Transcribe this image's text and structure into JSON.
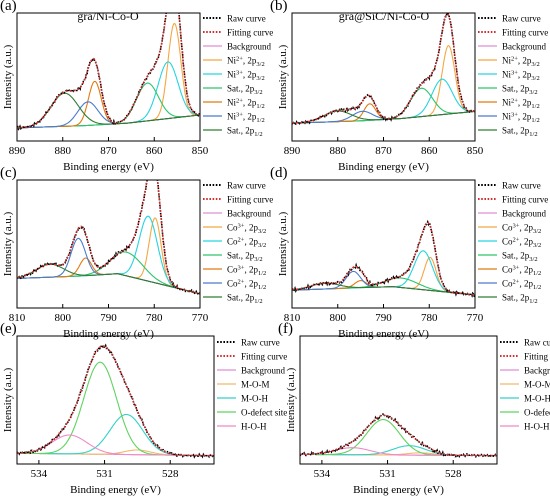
{
  "figure": {
    "xlabel": "Binding energy (eV)",
    "ylabel": "Intensity (a.u.)"
  },
  "colors": {
    "raw": "#000000",
    "fit": "#d32f2f",
    "background": "#e08fd0",
    "ni2_3": "#f4a742",
    "ni3_3": "#27d3e0",
    "sat_3": "#2ec46b",
    "ni2_1": "#e07a10",
    "ni3_1": "#4a7bd0",
    "sat_1": "#2e7d32",
    "o_mom": "#f1b96b",
    "o_moh": "#34d1c8",
    "o_def": "#5fd35f",
    "o_hoh": "#f08ac8"
  },
  "panels": [
    {
      "label": "(a)",
      "title": "gra/Ni-Co-O",
      "xlim": [
        890,
        850
      ],
      "ticks": [
        890,
        880,
        870,
        860,
        850
      ],
      "legend": [
        {
          "text": "Raw curve",
          "sub": "",
          "sup": "",
          "color": "raw",
          "style": "dot"
        },
        {
          "text": "Fitting curve",
          "sub": "",
          "sup": "",
          "color": "fit",
          "style": "dot"
        },
        {
          "text": "Background",
          "sub": "",
          "sup": "",
          "color": "background",
          "style": "line"
        },
        {
          "text": "Ni, 2p",
          "sup": "2+",
          "sub": "3/2",
          "color": "ni2_3",
          "style": "line"
        },
        {
          "text": "Ni, 2p",
          "sup": "3+",
          "sub": "3/2",
          "color": "ni3_3",
          "style": "line"
        },
        {
          "text": "Sat., 2p",
          "sup": "",
          "sub": "3/2",
          "color": "sat_3",
          "style": "line"
        },
        {
          "text": "Ni, 2p",
          "sup": "2+",
          "sub": "1/2",
          "color": "ni2_1",
          "style": "line"
        },
        {
          "text": "Ni, 2p",
          "sup": "3+",
          "sub": "1/2",
          "color": "ni3_1",
          "style": "line"
        },
        {
          "text": "Sat., 2p",
          "sup": "",
          "sub": "1/2",
          "color": "sat_1",
          "style": "line"
        }
      ]
    },
    {
      "label": "(b)",
      "title": "gra@SiC/Ni-Co-O",
      "xlim": [
        890,
        850
      ],
      "ticks": [
        890,
        880,
        870,
        860,
        850
      ],
      "legend": [
        {
          "text": "Raw curve",
          "sub": "",
          "sup": "",
          "color": "raw",
          "style": "dot"
        },
        {
          "text": "Fitting curve",
          "sub": "",
          "sup": "",
          "color": "fit",
          "style": "dot"
        },
        {
          "text": "Background",
          "sub": "",
          "sup": "",
          "color": "background",
          "style": "line"
        },
        {
          "text": "Ni, 2p",
          "sup": "2+",
          "sub": "3/2",
          "color": "ni2_3",
          "style": "line"
        },
        {
          "text": "Ni, 2p",
          "sup": "3+",
          "sub": "3/2",
          "color": "ni3_3",
          "style": "line"
        },
        {
          "text": "Sat., 2p",
          "sup": "",
          "sub": "3/2",
          "color": "sat_3",
          "style": "line"
        },
        {
          "text": "Ni, 2p",
          "sup": "2+",
          "sub": "1/2",
          "color": "ni2_1",
          "style": "line"
        },
        {
          "text": "Ni, 2p",
          "sup": "3+",
          "sub": "1/2",
          "color": "ni3_1",
          "style": "line"
        },
        {
          "text": "Sat., 2p",
          "sup": "",
          "sub": "1/2",
          "color": "sat_1",
          "style": "line"
        }
      ]
    },
    {
      "label": "(c)",
      "title": "",
      "xlim": [
        810,
        770
      ],
      "ticks": [
        810,
        800,
        790,
        780,
        770
      ],
      "legend": [
        {
          "text": "Raw curve",
          "sub": "",
          "sup": "",
          "color": "raw",
          "style": "dot"
        },
        {
          "text": "Fitting curve",
          "sub": "",
          "sup": "",
          "color": "fit",
          "style": "dot"
        },
        {
          "text": "Background",
          "sub": "",
          "sup": "",
          "color": "background",
          "style": "line"
        },
        {
          "text": "Co, 2p",
          "sup": "3+",
          "sub": "3/2",
          "color": "ni2_3",
          "style": "line"
        },
        {
          "text": "Co, 2p",
          "sup": "2+",
          "sub": "3/2",
          "color": "ni3_3",
          "style": "line"
        },
        {
          "text": "Sat., 2p",
          "sup": "",
          "sub": "3/2",
          "color": "sat_3",
          "style": "line"
        },
        {
          "text": "Co, 2p",
          "sup": "3+",
          "sub": "1/2",
          "color": "ni2_1",
          "style": "line"
        },
        {
          "text": "Co, 2p",
          "sup": "2+",
          "sub": "1/2",
          "color": "ni3_1",
          "style": "line"
        },
        {
          "text": "Sat., 2p",
          "sup": "",
          "sub": "1/2",
          "color": "sat_1",
          "style": "line"
        }
      ]
    },
    {
      "label": "(d)",
      "title": "",
      "xlim": [
        810,
        770
      ],
      "ticks": [
        810,
        800,
        790,
        780,
        770
      ],
      "legend": [
        {
          "text": "Raw curve",
          "sub": "",
          "sup": "",
          "color": "raw",
          "style": "dot"
        },
        {
          "text": "Fitting curve",
          "sub": "",
          "sup": "",
          "color": "fit",
          "style": "dot"
        },
        {
          "text": "Background",
          "sub": "",
          "sup": "",
          "color": "background",
          "style": "line"
        },
        {
          "text": "Co, 2p",
          "sup": "3+",
          "sub": "3/2",
          "color": "ni2_3",
          "style": "line"
        },
        {
          "text": "Co, 2p",
          "sup": "2+",
          "sub": "3/2",
          "color": "ni3_3",
          "style": "line"
        },
        {
          "text": "Sat., 2p",
          "sup": "",
          "sub": "3/2",
          "color": "sat_3",
          "style": "line"
        },
        {
          "text": "Co, 2p",
          "sup": "3+",
          "sub": "1/2",
          "color": "ni2_1",
          "style": "line"
        },
        {
          "text": "Co, 2p",
          "sup": "2+",
          "sub": "1/2",
          "color": "ni3_1",
          "style": "line"
        },
        {
          "text": "Sat., 2p",
          "sup": "",
          "sub": "1/2",
          "color": "sat_1",
          "style": "line"
        }
      ]
    },
    {
      "label": "(e)",
      "title": "",
      "xlim": [
        535,
        526
      ],
      "ticks": [
        534,
        531,
        528
      ],
      "legend": [
        {
          "text": "Raw curve",
          "sub": "",
          "sup": "",
          "color": "raw",
          "style": "dot"
        },
        {
          "text": "Fitting curve",
          "sub": "",
          "sup": "",
          "color": "fit",
          "style": "dot"
        },
        {
          "text": "Background",
          "sub": "",
          "sup": "",
          "color": "background",
          "style": "line"
        },
        {
          "text": "M-O-M",
          "sub": "",
          "sup": "",
          "color": "o_mom",
          "style": "line"
        },
        {
          "text": "M-O-H",
          "sub": "",
          "sup": "",
          "color": "o_moh",
          "style": "line"
        },
        {
          "text": "O-defect site",
          "sub": "",
          "sup": "",
          "color": "o_def",
          "style": "line"
        },
        {
          "text": "H-O-H",
          "sub": "",
          "sup": "",
          "color": "o_hoh",
          "style": "line"
        }
      ]
    },
    {
      "label": "(f)",
      "title": "",
      "xlim": [
        535,
        526
      ],
      "ticks": [
        534,
        531,
        528
      ],
      "legend": [
        {
          "text": "Raw curve",
          "sub": "",
          "sup": "",
          "color": "raw",
          "style": "dot"
        },
        {
          "text": "Fitting curve",
          "sub": "",
          "sup": "",
          "color": "fit",
          "style": "dot"
        },
        {
          "text": "Background",
          "sub": "",
          "sup": "",
          "color": "background",
          "style": "line"
        },
        {
          "text": "M-O-M",
          "sub": "",
          "sup": "",
          "color": "o_mom",
          "style": "line"
        },
        {
          "text": "M-O-H",
          "sub": "",
          "sup": "",
          "color": "o_moh",
          "style": "line"
        },
        {
          "text": "O-defect site",
          "sub": "",
          "sup": "",
          "color": "o_def",
          "style": "line"
        },
        {
          "text": "H-O-H",
          "sub": "",
          "sup": "",
          "color": "o_hoh",
          "style": "line"
        }
      ]
    }
  ],
  "chart_data": [
    {
      "panel": "(a)",
      "type": "line",
      "xlabel": "Binding energy (eV)",
      "ylabel": "Intensity (a.u.)",
      "xlim": [
        890,
        850
      ],
      "ylim": [
        0,
        1
      ],
      "background": [
        [
          890,
          0.06
        ],
        [
          875,
          0.08
        ],
        [
          866,
          0.1
        ],
        [
          850,
          0.17
        ]
      ],
      "components": [
        {
          "color": "ni2_3",
          "peaks": [
            [
              855.6,
              0.8,
              1.4
            ]
          ]
        },
        {
          "color": "ni3_3",
          "peaks": [
            [
              857.0,
              0.48,
              2.2
            ]
          ]
        },
        {
          "color": "sat_3",
          "peaks": [
            [
              861.5,
              0.32,
              2.4
            ]
          ]
        },
        {
          "color": "ni2_1",
          "peaks": [
            [
              873.0,
              0.37,
              1.4
            ]
          ]
        },
        {
          "color": "ni3_1",
          "peaks": [
            [
              874.5,
              0.2,
              2.2
            ]
          ]
        },
        {
          "color": "sat_1",
          "peaks": [
            [
              879.6,
              0.28,
              3.0
            ]
          ]
        }
      ]
    },
    {
      "panel": "(b)",
      "type": "line",
      "xlabel": "Binding energy (eV)",
      "ylabel": "Intensity (a.u.)",
      "xlim": [
        890,
        850
      ],
      "ylim": [
        0,
        1
      ],
      "background": [
        [
          890,
          0.1
        ],
        [
          875,
          0.12
        ],
        [
          866,
          0.14
        ],
        [
          850,
          0.2
        ]
      ],
      "components": [
        {
          "color": "ni2_3",
          "peaks": [
            [
              855.8,
              0.58,
              1.4
            ]
          ]
        },
        {
          "color": "ni3_3",
          "peaks": [
            [
              857.2,
              0.3,
              2.2
            ]
          ]
        },
        {
          "color": "sat_3",
          "peaks": [
            [
              861.7,
              0.24,
              2.4
            ]
          ]
        },
        {
          "color": "ni2_1",
          "peaks": [
            [
              873.0,
              0.14,
              1.3
            ]
          ]
        },
        {
          "color": "ni3_1",
          "peaks": [
            [
              874.6,
              0.08,
              2.2
            ]
          ]
        },
        {
          "color": "sat_1",
          "peaks": [
            [
              880.0,
              0.09,
              3.0
            ]
          ]
        }
      ]
    },
    {
      "panel": "(c)",
      "type": "line",
      "xlabel": "Binding energy (eV)",
      "ylabel": "Intensity (a.u.)",
      "xlim": [
        810,
        770
      ],
      "ylim": [
        0,
        1
      ],
      "background": [
        [
          810,
          0.2
        ],
        [
          796,
          0.22
        ],
        [
          788,
          0.24
        ],
        [
          770,
          0.07
        ]
      ],
      "components": [
        {
          "color": "ni2_3",
          "peaks": [
            [
              779.8,
              0.55,
              1.3
            ]
          ]
        },
        {
          "color": "ni3_3",
          "peaks": [
            [
              781.3,
              0.55,
              2.0
            ]
          ]
        },
        {
          "color": "sat_3",
          "peaks": [
            [
              786.0,
              0.2,
              3.5
            ]
          ]
        },
        {
          "color": "ni2_1",
          "peaks": [
            [
              795.0,
              0.15,
              1.3
            ]
          ]
        },
        {
          "color": "ni3_1",
          "peaks": [
            [
              796.6,
              0.32,
              1.6
            ]
          ]
        },
        {
          "color": "sat_1",
          "peaks": [
            [
              802.8,
              0.11,
              3.0
            ]
          ]
        }
      ]
    },
    {
      "panel": "(d)",
      "type": "line",
      "xlabel": "Binding energy (eV)",
      "ylabel": "Intensity (a.u.)",
      "xlim": [
        810,
        770
      ],
      "ylim": [
        0,
        1
      ],
      "background": [
        [
          810,
          0.1
        ],
        [
          796,
          0.12
        ],
        [
          788,
          0.13
        ],
        [
          770,
          0.06
        ]
      ],
      "components": [
        {
          "color": "ni2_3",
          "peaks": [
            [
              779.8,
              0.28,
              1.3
            ]
          ]
        },
        {
          "color": "ni3_3",
          "peaks": [
            [
              781.3,
              0.33,
              2.0
            ]
          ]
        },
        {
          "color": "sat_3",
          "peaks": [
            [
              786.0,
              0.08,
              3.5
            ]
          ]
        },
        {
          "color": "ni2_1",
          "peaks": [
            [
              795.0,
              0.06,
              1.3
            ]
          ]
        },
        {
          "color": "ni3_1",
          "peaks": [
            [
              796.6,
              0.14,
              1.6
            ]
          ]
        },
        {
          "color": "sat_1",
          "peaks": [
            [
              802.8,
              0.05,
              3.0
            ]
          ]
        }
      ]
    },
    {
      "panel": "(e)",
      "type": "line",
      "xlabel": "Binding energy (eV)",
      "ylabel": "Intensity (a.u.)",
      "xlim": [
        535,
        526
      ],
      "ylim": [
        0,
        1
      ],
      "background": [
        [
          535,
          0.04
        ],
        [
          526,
          0.02
        ]
      ],
      "components": [
        {
          "color": "o_mom",
          "peaks": [
            [
              529.5,
              0.04,
              0.6
            ]
          ]
        },
        {
          "color": "o_moh",
          "peaks": [
            [
              530.0,
              0.34,
              0.75
            ]
          ]
        },
        {
          "color": "o_def",
          "peaks": [
            [
              531.2,
              0.78,
              0.75
            ]
          ]
        },
        {
          "color": "o_hoh",
          "peaks": [
            [
              532.6,
              0.16,
              0.8
            ]
          ]
        }
      ]
    },
    {
      "panel": "(f)",
      "type": "line",
      "xlabel": "Binding energy (eV)",
      "ylabel": "Intensity (a.u.)",
      "xlim": [
        535,
        526
      ],
      "ylim": [
        0,
        1
      ],
      "background": [
        [
          535,
          0.03
        ],
        [
          526,
          0.02
        ]
      ],
      "components": [
        {
          "color": "o_mom",
          "peaks": [
            [
              529.5,
              0.02,
              0.6
            ]
          ]
        },
        {
          "color": "o_moh",
          "peaks": [
            [
              530.0,
              0.08,
              0.75
            ]
          ]
        },
        {
          "color": "o_def",
          "peaks": [
            [
              531.2,
              0.3,
              0.75
            ]
          ]
        },
        {
          "color": "o_hoh",
          "peaks": [
            [
              532.6,
              0.06,
              0.8
            ]
          ]
        }
      ]
    }
  ]
}
